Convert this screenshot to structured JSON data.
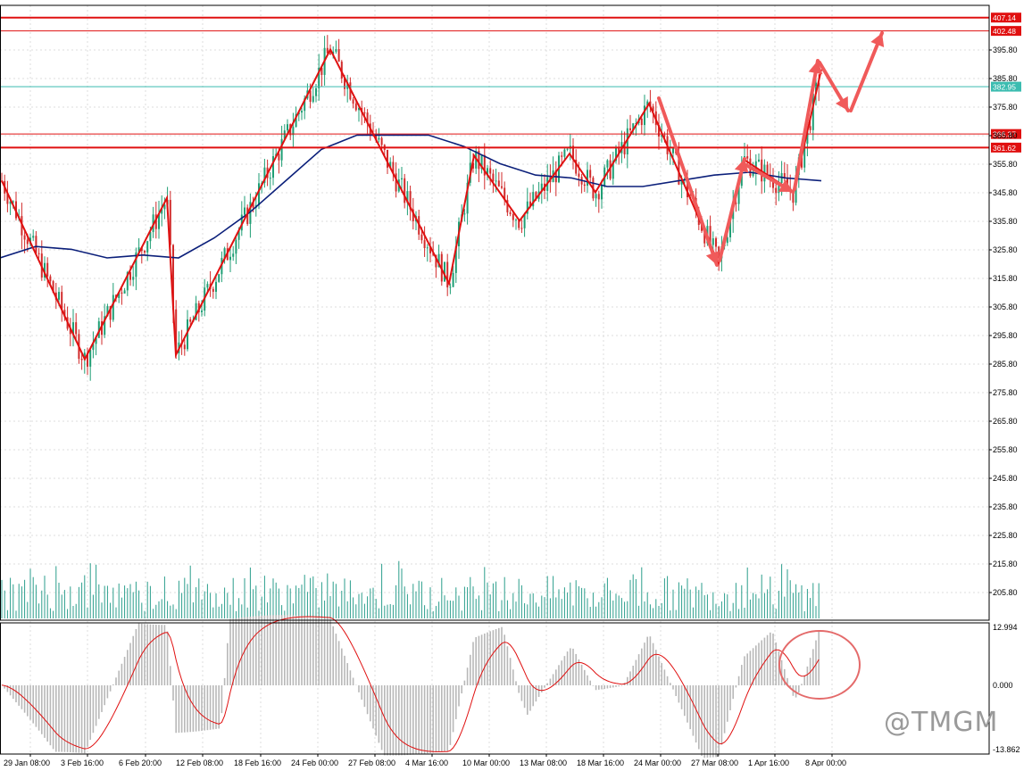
{
  "watermark": "@TMGM",
  "colors": {
    "bull": "#1f9e74",
    "bear": "#d12b2b",
    "ma": "#0b1f7a",
    "zigzag": "#e01010",
    "arrow": "#f05a5a",
    "hline": "#e01010",
    "current": "#3bbcb0",
    "volume": "#2b9e8c",
    "macd_hist": "#b8b8b8",
    "signal": "#e01010",
    "grid": "#dcdcdc"
  },
  "price_axis": {
    "ticks": [
      "395.80",
      "385.80",
      "375.80",
      "365.80",
      "355.80",
      "345.80",
      "335.80",
      "325.80",
      "315.80",
      "305.80",
      "295.80",
      "285.80",
      "275.80",
      "265.80",
      "255.80",
      "245.80",
      "235.80",
      "225.80",
      "215.80",
      "205.80"
    ],
    "tag_407": "407.14",
    "tag_402": "402.48",
    "tag_current": "382.95",
    "tag_366": "366.37",
    "tag_361": "361.62"
  },
  "macd_axis": {
    "top": "12.994",
    "zero": "0.000",
    "bottom": "-13.862"
  },
  "time_axis": [
    "29 Jan 08:00",
    "3 Feb 16:00",
    "6 Feb 20:00",
    "12 Feb 08:00",
    "18 Feb 16:00",
    "24 Feb 00:00",
    "27 Feb 08:00",
    "4 Mar 16:00",
    "10 Mar 00:00",
    "13 Mar 08:00",
    "18 Mar 16:00",
    "24 Mar 00:00",
    "27 Mar 08:00",
    "1 Apr 16:00",
    "8 Apr 00:00"
  ],
  "chart_data": {
    "type": "candlestick",
    "price_range": [
      195.8,
      407.14
    ],
    "horizontal_levels": [
      407.14,
      402.48,
      382.95,
      366.37,
      361.62
    ],
    "zigzag": [
      350,
      287.5,
      344,
      289,
      396,
      314,
      358.8,
      336,
      359.5,
      346,
      377,
      321,
      357.5,
      346,
      389
    ],
    "moving_average": [
      323,
      327,
      326,
      323,
      324,
      323,
      330,
      339,
      350,
      361,
      366,
      366,
      366,
      362,
      356,
      352,
      351,
      348,
      348,
      350,
      352,
      353,
      351,
      350
    ]
  }
}
